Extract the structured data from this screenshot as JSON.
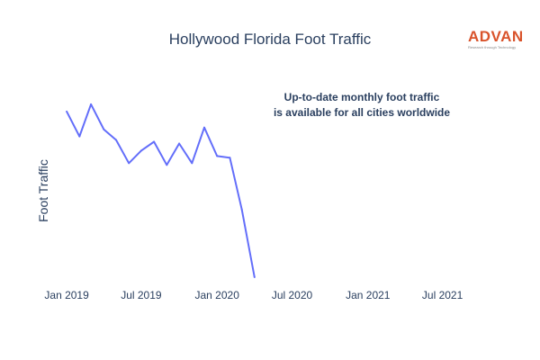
{
  "chart_data": {
    "type": "line",
    "title": "Hollywood Florida Foot Traffic",
    "ylabel": "Foot Traffic",
    "xlabel": "",
    "annotation": [
      "Up-to-date monthly foot traffic",
      "is available for all cities worldwide"
    ],
    "x_ticks": [
      "Jan 2019",
      "Jul 2019",
      "Jan 2020",
      "Jul 2020",
      "Jan 2021",
      "Jul 2021"
    ],
    "x_range": [
      "2018-12-10",
      "2021-09-25"
    ],
    "y_range": [
      0,
      100
    ],
    "grid": false,
    "legend": "none",
    "line_color": "#636efa",
    "series": [
      {
        "x": [
          "2019-01-01",
          "2019-02-01",
          "2019-03-01",
          "2019-04-01",
          "2019-05-01",
          "2019-06-01",
          "2019-07-01",
          "2019-08-01",
          "2019-09-01",
          "2019-10-01",
          "2019-11-01",
          "2019-12-01",
          "2020-01-01",
          "2020-02-01",
          "2020-03-01",
          "2020-04-01"
        ],
        "values": [
          93,
          79,
          97,
          83,
          77,
          64,
          71,
          76,
          63,
          75,
          64,
          84,
          68,
          67,
          38,
          0
        ]
      }
    ]
  },
  "logo": {
    "name": "ADVAN",
    "tagline": "Research through Technology"
  }
}
